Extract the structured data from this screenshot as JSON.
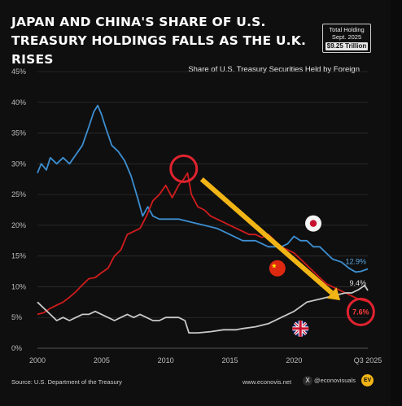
{
  "title": "JAPAN AND CHINA'S SHARE OF U.S. TREASURY HOLDINGS FALLS AS THE U.K. RISES",
  "total_holding": {
    "label_line1": "Total Holding",
    "label_line2": "Sept. 2025",
    "amount": "$9.25 Trillion"
  },
  "footer": {
    "source": "Source: U.S. Department of the Treasury",
    "website": "www.econovis.net",
    "handle": "@econovisuals",
    "logo_text": "EV"
  },
  "colors": {
    "japan": "#3d8fd1",
    "china": "#d11c1c",
    "uk": "#c9c9c9",
    "arrow": "#f2b516",
    "circle": "#e0232f",
    "grid": "#2e2e2e",
    "text": "#e6e6e6"
  },
  "chart_data": {
    "type": "line",
    "subtitle": "Share of U.S. Treasury Securities Held by Foreign",
    "xlim": [
      2000,
      2025.75
    ],
    "ylim": [
      0,
      45
    ],
    "ytick_values": [
      0,
      5,
      10,
      15,
      20,
      25,
      30,
      35,
      40,
      45
    ],
    "ytick_labels": [
      "0%",
      "5%",
      "10%",
      "15%",
      "20%",
      "25%",
      "30%",
      "35%",
      "40%",
      "45%"
    ],
    "xtick_values": [
      2000,
      2005,
      2010,
      2015,
      2020,
      2025.75
    ],
    "xtick_labels": [
      "2000",
      "2005",
      "2010",
      "2015",
      "2020",
      "Q3 2025"
    ],
    "grid": "horizontal",
    "series": [
      {
        "key": "japan",
        "icon": "japan-flag-icon",
        "end_label": "12.9%",
        "points": [
          [
            2000,
            28.5
          ],
          [
            2000.3,
            30
          ],
          [
            2000.7,
            29
          ],
          [
            2001,
            31
          ],
          [
            2001.5,
            30
          ],
          [
            2002,
            31
          ],
          [
            2002.5,
            30
          ],
          [
            2003,
            31.5
          ],
          [
            2003.5,
            33
          ],
          [
            2004,
            36
          ],
          [
            2004.4,
            38.5
          ],
          [
            2004.7,
            39.5
          ],
          [
            2005,
            38
          ],
          [
            2005.3,
            36
          ],
          [
            2005.8,
            33
          ],
          [
            2006.3,
            32
          ],
          [
            2006.8,
            30.5
          ],
          [
            2007.3,
            28
          ],
          [
            2007.8,
            24.5
          ],
          [
            2008.2,
            21.5
          ],
          [
            2008.6,
            23
          ],
          [
            2009,
            21.5
          ],
          [
            2009.5,
            21
          ],
          [
            2010,
            21
          ],
          [
            2011,
            21
          ],
          [
            2012,
            20.5
          ],
          [
            2013,
            20
          ],
          [
            2014,
            19.5
          ],
          [
            2015,
            18.5
          ],
          [
            2016,
            17.5
          ],
          [
            2017,
            17.5
          ],
          [
            2018,
            16.5
          ],
          [
            2019,
            16.5
          ],
          [
            2019.5,
            17
          ],
          [
            2020,
            18.2
          ],
          [
            2020.5,
            17.5
          ],
          [
            2021,
            17.5
          ],
          [
            2021.5,
            16.5
          ],
          [
            2022,
            16.5
          ],
          [
            2022.5,
            15.5
          ],
          [
            2023,
            14.5
          ],
          [
            2023.7,
            14
          ],
          [
            2024.3,
            13
          ],
          [
            2024.8,
            12.4
          ],
          [
            2025.2,
            12.5
          ],
          [
            2025.75,
            12.9
          ]
        ]
      },
      {
        "key": "china",
        "icon": "china-flag-icon",
        "end_label": "7.6%",
        "points": [
          [
            2000,
            5.5
          ],
          [
            2000.5,
            5.8
          ],
          [
            2001,
            6.5
          ],
          [
            2001.5,
            7
          ],
          [
            2002,
            7.5
          ],
          [
            2002.5,
            8.3
          ],
          [
            2003,
            9.2
          ],
          [
            2003.5,
            10.3
          ],
          [
            2004,
            11.3
          ],
          [
            2004.5,
            11.5
          ],
          [
            2005,
            12.3
          ],
          [
            2005.5,
            13
          ],
          [
            2006,
            15
          ],
          [
            2006.5,
            16
          ],
          [
            2007,
            18.5
          ],
          [
            2007.5,
            19
          ],
          [
            2008,
            19.5
          ],
          [
            2008.5,
            21.5
          ],
          [
            2009,
            24
          ],
          [
            2009.5,
            25
          ],
          [
            2010,
            26.5
          ],
          [
            2010.5,
            24.5
          ],
          [
            2011,
            26.5
          ],
          [
            2011.4,
            27.5
          ],
          [
            2011.7,
            28.5
          ],
          [
            2012,
            25
          ],
          [
            2012.5,
            23
          ],
          [
            2013,
            22.5
          ],
          [
            2013.5,
            21.5
          ],
          [
            2014,
            21
          ],
          [
            2014.5,
            20.5
          ],
          [
            2015,
            20
          ],
          [
            2015.5,
            19.5
          ],
          [
            2016,
            19
          ],
          [
            2016.5,
            18.5
          ],
          [
            2017,
            18.5
          ],
          [
            2017.5,
            18
          ],
          [
            2018,
            18.5
          ],
          [
            2018.5,
            17.5
          ],
          [
            2019,
            16.5
          ],
          [
            2019.5,
            16
          ],
          [
            2020,
            15.5
          ],
          [
            2020.5,
            14.5
          ],
          [
            2021,
            13.5
          ],
          [
            2021.5,
            12.5
          ],
          [
            2022,
            11.5
          ],
          [
            2022.5,
            10.5
          ],
          [
            2023,
            10
          ],
          [
            2023.5,
            9.5
          ],
          [
            2024,
            9
          ],
          [
            2024.5,
            8.5
          ],
          [
            2025,
            8
          ],
          [
            2025.75,
            7.6
          ]
        ]
      },
      {
        "key": "uk",
        "icon": "uk-flag-icon",
        "end_label": "9.4%",
        "points": [
          [
            2000,
            7.5
          ],
          [
            2000.5,
            6.5
          ],
          [
            2001,
            5.5
          ],
          [
            2001.5,
            4.5
          ],
          [
            2002,
            5
          ],
          [
            2002.5,
            4.5
          ],
          [
            2003,
            5
          ],
          [
            2003.5,
            5.5
          ],
          [
            2004,
            5.5
          ],
          [
            2004.5,
            6
          ],
          [
            2005,
            5.5
          ],
          [
            2005.5,
            5
          ],
          [
            2006,
            4.5
          ],
          [
            2006.5,
            5
          ],
          [
            2007,
            5.5
          ],
          [
            2007.5,
            5
          ],
          [
            2008,
            5.5
          ],
          [
            2008.5,
            5
          ],
          [
            2009,
            4.5
          ],
          [
            2009.5,
            4.5
          ],
          [
            2010,
            5
          ],
          [
            2010.5,
            5
          ],
          [
            2011,
            5
          ],
          [
            2011.5,
            4.5
          ],
          [
            2011.8,
            2.5
          ],
          [
            2012.5,
            2.5
          ],
          [
            2013.5,
            2.7
          ],
          [
            2014.5,
            3
          ],
          [
            2015.5,
            3
          ],
          [
            2016,
            3.2
          ],
          [
            2017,
            3.5
          ],
          [
            2018,
            4
          ],
          [
            2019,
            5
          ],
          [
            2020,
            6
          ],
          [
            2021,
            7.5
          ],
          [
            2022,
            8
          ],
          [
            2023,
            8.5
          ],
          [
            2024,
            9
          ],
          [
            2024.5,
            9
          ],
          [
            2025,
            9.5
          ],
          [
            2025.5,
            10.2
          ],
          [
            2025.75,
            9.4
          ]
        ]
      }
    ],
    "highlight_circles": [
      {
        "x": 2011.4,
        "y": 29.2
      },
      {
        "x": 2025.2,
        "y": 5.9
      }
    ],
    "trend_arrow": {
      "from": [
        2012.8,
        27.5
      ],
      "to": [
        2023.6,
        7.8
      ]
    }
  }
}
